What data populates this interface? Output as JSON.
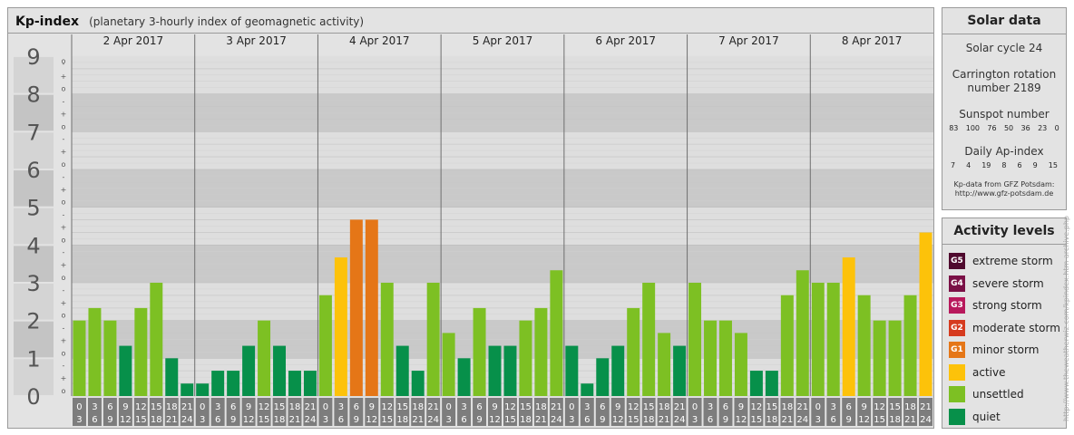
{
  "header": {
    "title": "Kp-index",
    "subtitle": "(planetary 3-hourly index of geomagnetic activity)"
  },
  "chart_data": {
    "type": "bar",
    "title": "Kp-index",
    "subtitle": "(planetary 3-hourly index of geomagnetic activity)",
    "ylim": [
      0,
      9
    ],
    "y_ticks": [
      "0",
      "1",
      "2",
      "3",
      "4",
      "5",
      "6",
      "7",
      "8",
      "9"
    ],
    "minor_tick_labels": [
      "o",
      "+",
      "-"
    ],
    "days": [
      "2 Apr 2017",
      "3 Apr 2017",
      "4 Apr 2017",
      "5 Apr 2017",
      "6 Apr 2017",
      "7 Apr 2017",
      "8 Apr 2017"
    ],
    "interval_labels": [
      {
        "top": "0",
        "bottom": "3"
      },
      {
        "top": "3",
        "bottom": "6"
      },
      {
        "top": "6",
        "bottom": "9"
      },
      {
        "top": "9",
        "bottom": "12"
      },
      {
        "top": "12",
        "bottom": "15"
      },
      {
        "top": "15",
        "bottom": "18"
      },
      {
        "top": "18",
        "bottom": "21"
      },
      {
        "top": "21",
        "bottom": "24"
      }
    ],
    "values": [
      2.0,
      2.33,
      2.0,
      1.33,
      2.33,
      3.0,
      1.0,
      0.33,
      0.33,
      0.67,
      0.67,
      1.33,
      2.0,
      1.33,
      0.67,
      0.67,
      2.67,
      3.67,
      4.67,
      4.67,
      3.0,
      1.33,
      0.67,
      3.0,
      1.67,
      1.0,
      2.33,
      1.33,
      1.33,
      2.0,
      2.33,
      3.33,
      1.33,
      0.33,
      1.0,
      1.33,
      2.33,
      3.0,
      1.67,
      1.33,
      3.0,
      2.0,
      2.0,
      1.67,
      0.67,
      0.67,
      2.67,
      3.33,
      3.0,
      3.0,
      3.67,
      2.67,
      2.0,
      2.0,
      2.67,
      4.33
    ],
    "colors": {
      "quiet": "#07904a",
      "unsettled": "#7dc023",
      "active": "#fdc20a",
      "minor_storm": "#e57617",
      "grid_dark": "#c9c9c9",
      "grid_light": "#dedede",
      "axis_label_bg": "#7d7d7d",
      "separator": "#6f6f6f"
    }
  },
  "solar": {
    "title": "Solar data",
    "cycle": "Solar cycle 24",
    "carrington_line1": "Carrington rotation",
    "carrington_line2": "number 2189",
    "sunspot_title": "Sunspot number",
    "sunspot_values": [
      "83",
      "100",
      "76",
      "50",
      "36",
      "23",
      "0"
    ],
    "ap_title": "Daily Ap-index",
    "ap_values": [
      "7",
      "4",
      "19",
      "8",
      "6",
      "9",
      "15"
    ],
    "source_line1": "Kp-data from GFZ Potsdam:",
    "source_line2": "http://www.gfz-potsdam.de"
  },
  "activity": {
    "title": "Activity levels",
    "items": [
      {
        "code": "G5",
        "label": "extreme storm",
        "color": "#4f0a2e"
      },
      {
        "code": "G4",
        "label": "severe storm",
        "color": "#7a1046"
      },
      {
        "code": "G3",
        "label": "strong storm",
        "color": "#b8195c"
      },
      {
        "code": "G2",
        "label": "moderate storm",
        "color": "#d63b1f"
      },
      {
        "code": "G1",
        "label": "minor storm",
        "color": "#e57617"
      },
      {
        "code": "",
        "label": "active",
        "color": "#fdc20a"
      },
      {
        "code": "",
        "label": "unsettled",
        "color": "#7dc023"
      },
      {
        "code": "",
        "label": "quiet",
        "color": "#07904a"
      }
    ]
  },
  "footer": {
    "vertical_url": "http://www.theweatherwiz.com/kpindex.htm archive.php"
  }
}
